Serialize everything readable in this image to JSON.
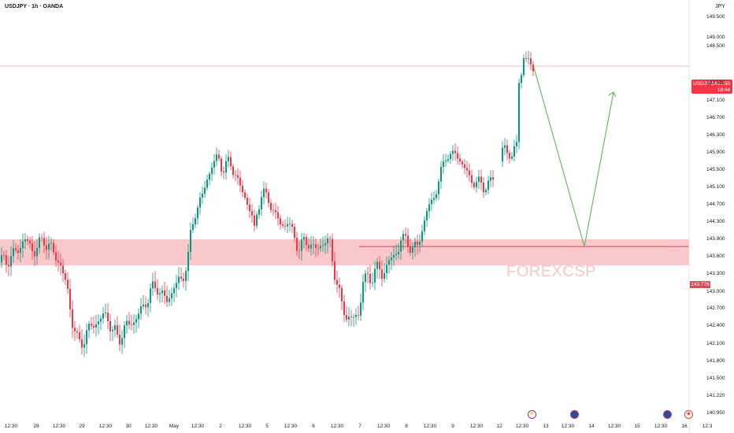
{
  "header": {
    "title": "USDJPY · 1h · OANDA",
    "currency": "JPY"
  },
  "price_tag": {
    "symbol": "USDJPY",
    "value": "148.050",
    "countdown": "18:44"
  },
  "sr_label": "143.776",
  "watermark": "FOREXCSP",
  "colors": {
    "up": "#089981",
    "down": "#f23645",
    "zone": "#f9c8cb",
    "arrow": "#5cb85c",
    "level_line": "#d64a5b"
  },
  "events": [
    {
      "icon": "lightning-icon",
      "glyph": "⚡"
    },
    {
      "icon": "us-flag-icon",
      "glyph": ""
    },
    {
      "icon": "us-flag-icon",
      "glyph": ""
    },
    {
      "icon": "alert-circle-icon",
      "glyph": "◉"
    }
  ],
  "chart_data": {
    "type": "candlestick",
    "symbol": "USDJPY",
    "interval": "1h",
    "source": "OANDA",
    "y_axis": {
      "ticks": [
        "149.500",
        "149.000",
        "148.500",
        "148.050",
        "147.500",
        "147.100",
        "146.700",
        "146.300",
        "145.900",
        "145.500",
        "145.100",
        "144.700",
        "144.300",
        "143.900",
        "143.600",
        "143.300",
        "143.000",
        "142.700",
        "142.400",
        "142.100",
        "141.800",
        "141.500",
        "141.220",
        "140.950"
      ],
      "range": [
        140.9,
        149.8
      ]
    },
    "x_axis": {
      "ticks": [
        "12:30",
        "28",
        "12:30",
        "29",
        "12:30",
        "30",
        "12:30",
        "May",
        "12:30",
        "2",
        "12:30",
        "5",
        "12:30",
        "6",
        "12:30",
        "7",
        "12:30",
        "8",
        "12:30",
        "9",
        "12:30",
        "12",
        "12:30",
        "13",
        "12:30",
        "14",
        "12:30",
        "15",
        "12:30",
        "16",
        "12:3"
      ]
    },
    "current_price": 148.05,
    "support_level": 143.776,
    "support_zone": [
      143.45,
      143.9
    ],
    "close_path": [
      [
        0,
        143.5
      ],
      [
        15,
        143.6
      ],
      [
        30,
        143.9
      ],
      [
        42,
        143.7
      ],
      [
        55,
        143.9
      ],
      [
        65,
        143.7
      ],
      [
        75,
        143.5
      ],
      [
        85,
        143.0
      ],
      [
        92,
        142.4
      ],
      [
        98,
        142.1
      ],
      [
        106,
        142.2
      ],
      [
        115,
        142.4
      ],
      [
        125,
        142.5
      ],
      [
        135,
        142.6
      ],
      [
        142,
        142.3
      ],
      [
        150,
        142.2
      ],
      [
        160,
        142.4
      ],
      [
        170,
        142.5
      ],
      [
        180,
        142.7
      ],
      [
        190,
        143.0
      ],
      [
        200,
        143.1
      ],
      [
        210,
        142.8
      ],
      [
        220,
        143.1
      ],
      [
        230,
        143.2
      ],
      [
        238,
        143.6
      ],
      [
        242,
        144.1
      ],
      [
        248,
        144.6
      ],
      [
        256,
        144.9
      ],
      [
        262,
        145.3
      ],
      [
        268,
        145.6
      ],
      [
        276,
        145.8
      ],
      [
        282,
        145.5
      ],
      [
        290,
        145.7
      ],
      [
        298,
        145.4
      ],
      [
        304,
        145.1
      ],
      [
        312,
        144.8
      ],
      [
        318,
        144.5
      ],
      [
        322,
        144.1
      ],
      [
        326,
        144.6
      ],
      [
        332,
        145.0
      ],
      [
        340,
        144.8
      ],
      [
        348,
        144.5
      ],
      [
        356,
        144.2
      ],
      [
        364,
        144.3
      ],
      [
        372,
        144.0
      ],
      [
        380,
        143.7
      ],
      [
        386,
        143.9
      ],
      [
        394,
        143.8
      ],
      [
        402,
        143.7
      ],
      [
        410,
        143.9
      ],
      [
        418,
        143.8
      ],
      [
        426,
        143.2
      ],
      [
        432,
        142.8
      ],
      [
        438,
        142.6
      ],
      [
        446,
        142.5
      ],
      [
        454,
        142.6
      ],
      [
        460,
        143.2
      ],
      [
        468,
        143.2
      ],
      [
        476,
        143.4
      ],
      [
        484,
        143.3
      ],
      [
        492,
        143.5
      ],
      [
        500,
        143.6
      ],
      [
        508,
        143.9
      ],
      [
        516,
        143.9
      ],
      [
        524,
        143.7
      ],
      [
        530,
        143.8
      ],
      [
        536,
        144.2
      ],
      [
        542,
        144.6
      ],
      [
        548,
        144.8
      ],
      [
        554,
        145.1
      ],
      [
        560,
        145.5
      ],
      [
        566,
        145.9
      ],
      [
        572,
        145.8
      ],
      [
        578,
        145.9
      ],
      [
        584,
        145.7
      ],
      [
        590,
        145.5
      ],
      [
        596,
        145.3
      ],
      [
        602,
        145.2
      ],
      [
        608,
        145.2
      ],
      [
        614,
        145.1
      ],
      [
        620,
        145.2
      ],
      [
        626,
        145.3
      ],
      [
        632,
        145.4
      ],
      [
        636,
        146.0
      ],
      [
        640,
        146.0
      ],
      [
        644,
        145.8
      ],
      [
        648,
        145.9
      ],
      [
        652,
        146.0
      ],
      [
        656,
        146.0
      ],
      [
        658,
        147.5
      ],
      [
        661,
        147.9
      ],
      [
        664,
        148.3
      ],
      [
        668,
        148.1
      ],
      [
        672,
        148.2
      ],
      [
        675,
        147.9
      ],
      [
        678,
        148.0
      ]
    ],
    "annotations": {
      "projection_path": [
        [
          678,
          148.0
        ],
        [
          742,
          143.776
        ],
        [
          779,
          147.3
        ]
      ]
    }
  }
}
